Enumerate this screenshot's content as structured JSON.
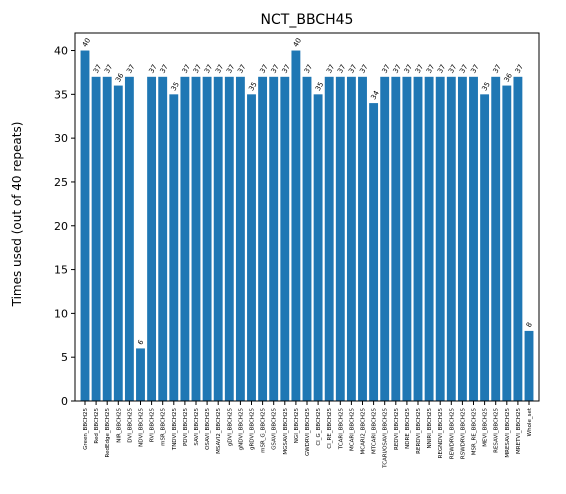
{
  "chart_data": {
    "type": "bar",
    "title": "NCT_BBCH45",
    "xlabel": "",
    "ylabel": "Times used (out of 40 repeats)",
    "ylim": [
      0,
      42
    ],
    "yticks": [
      0,
      5,
      10,
      15,
      20,
      25,
      30,
      35,
      40
    ],
    "grid": false,
    "bar_color": "#1f77b4",
    "categories": [
      "Green_BBCH25",
      "Red_BBCH25",
      "RedEdge_BBCH25",
      "NIR_BBCH25",
      "DVI_BBCH25",
      "NDVI_BBCH25",
      "RVI_BBCH25",
      "mSR_BBCH25",
      "TNDVI_BBCH25",
      "PDVI_BBCH25",
      "SAVI_BBCH25",
      "OSAVI_BBCH25",
      "MSAVI2_BBCH25",
      "gDVI_BBCH25",
      "gNDVI_BBCH25",
      "gRDVI_BBCH25",
      "mSR_G_BBCH25",
      "GSAVI_BBCH25",
      "MGSAVI_BBCH25",
      "NGI_BBCH25",
      "GWDRVI_BBCH25",
      "CI_G_BBCH25",
      "CI_RE_BBCH25",
      "TCARI_BBCH25",
      "MCARI_BBCH25",
      "MCARI2_BBCH25",
      "MTCARI_BBCH25",
      "TCARI/OSAVI_BBCH25",
      "REDVI_BBCH25",
      "NDRE_BBCH25",
      "RERDVI_BBCH25",
      "NNIRI_BBCH25",
      "REGNDVI_BBCH25",
      "REWDRVI_BBCH25",
      "RSWDRVI_BBCH25",
      "MSR_RE_BBCH25",
      "MEVI_BBCH25",
      "RESAVI_BBCH25",
      "MRESAVI_BBCH25",
      "MRETVI_BBCH25",
      "Whole_set"
    ],
    "values": [
      40,
      37,
      37,
      36,
      37,
      6,
      37,
      37,
      35,
      37,
      37,
      37,
      37,
      37,
      37,
      35,
      37,
      37,
      37,
      40,
      37,
      35,
      37,
      37,
      37,
      37,
      34,
      37,
      37,
      37,
      37,
      37,
      37,
      37,
      37,
      37,
      35,
      37,
      36,
      37,
      8
    ]
  }
}
